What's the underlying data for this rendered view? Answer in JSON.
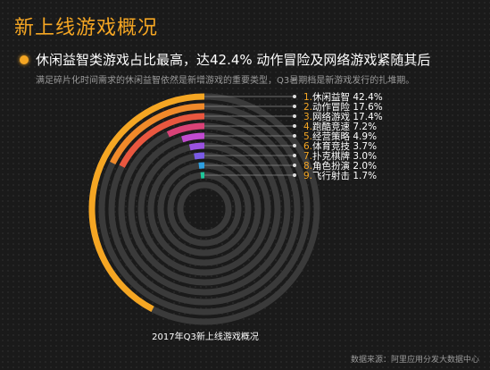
{
  "title": "新上线游戏概况",
  "headline": "休闲益智类游戏占比最高，达42.4%   动作冒险及网络游戏紧随其后",
  "subheadline": "满足碎片化时间需求的休闲益智依然是新增游戏的重要类型，Q3暑期档是新游戏发行的扎堆期。",
  "source": "数据来源：阿里应用分发大数据中心",
  "colors": {
    "accent": "#f5a623",
    "background": "#1a1a1a",
    "track": "#3a3a3a",
    "leader": "#8a8a8a"
  },
  "chart_data": {
    "type": "radial-bar",
    "title": "2017年Q3新上线游戏概况",
    "unit": "%",
    "max": 100,
    "series": [
      {
        "index": "1.",
        "name": "休闲益智",
        "value": 42.4,
        "color": "#f5a623"
      },
      {
        "index": "2.",
        "name": "动作冒险",
        "value": 17.6,
        "color": "#f08a2a"
      },
      {
        "index": "3.",
        "name": "网络游戏",
        "value": 17.4,
        "color": "#e9573f"
      },
      {
        "index": "4.",
        "name": "跑酷竞速",
        "value": 7.2,
        "color": "#d94277"
      },
      {
        "index": "5.",
        "name": "经营策略",
        "value": 4.9,
        "color": "#c04bd0"
      },
      {
        "index": "6.",
        "name": "体育竞技",
        "value": 3.7,
        "color": "#9a52e0"
      },
      {
        "index": "7.",
        "name": "扑克棋牌",
        "value": 3.0,
        "color": "#7b5be6"
      },
      {
        "index": "8.",
        "name": "角色扮演",
        "value": 2.0,
        "color": "#2f9fe0"
      },
      {
        "index": "9.",
        "name": "飞行射击",
        "value": 1.7,
        "color": "#1fc79a"
      }
    ]
  }
}
